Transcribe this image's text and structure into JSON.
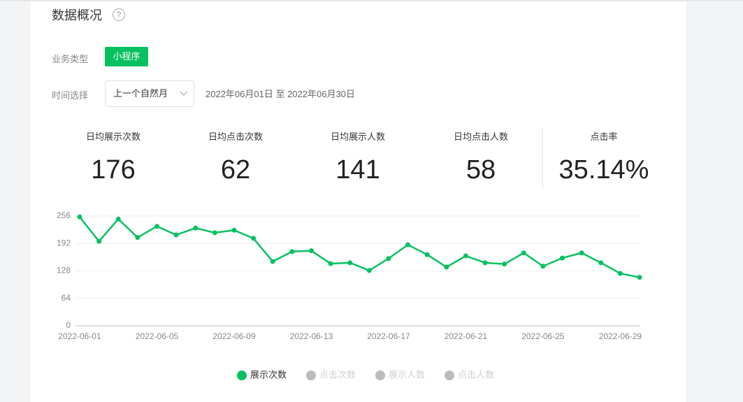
{
  "header": {
    "title": "数据概况",
    "help_icon": "?"
  },
  "filters": {
    "business_type": {
      "label": "业务类型",
      "tag": "小程序"
    },
    "time_select": {
      "label": "时间选择",
      "value": "上一个自然月",
      "range": "2022年06月01日 至 2022年06月30日"
    }
  },
  "stats": [
    {
      "label": "日均展示次数",
      "value": 176
    },
    {
      "label": "日均点击次数",
      "value": 62
    },
    {
      "label": "日均展示人数",
      "value": 141
    },
    {
      "label": "日均点击人数",
      "value": 58
    },
    {
      "label": "点击率",
      "value": "35.14%"
    }
  ],
  "chart_data": {
    "type": "line",
    "categories": [
      "2022-06-01",
      null,
      null,
      null,
      "2022-06-05",
      null,
      null,
      null,
      "2022-06-09",
      null,
      null,
      null,
      "2022-06-13",
      null,
      null,
      null,
      "2022-06-17",
      null,
      null,
      null,
      "2022-06-21",
      null,
      null,
      null,
      "2022-06-25",
      null,
      null,
      null,
      "2022-06-29",
      null
    ],
    "series": [
      {
        "name": "展示次数",
        "color": "#07c160",
        "values": [
          254,
          197,
          249,
          206,
          232,
          212,
          228,
          217,
          223,
          204,
          150,
          173,
          175,
          145,
          147,
          129,
          157,
          189,
          166,
          137,
          163,
          147,
          144,
          170,
          139,
          158,
          170,
          147,
          122,
          113
        ]
      },
      {
        "name": "点击次数",
        "color": "#bbbbbb",
        "hidden": true
      },
      {
        "name": "展示人数",
        "color": "#bbbbbb",
        "hidden": true
      },
      {
        "name": "点击人数",
        "color": "#bbbbbb",
        "hidden": true
      }
    ],
    "ylim": [
      0,
      256
    ],
    "yticks": [
      0,
      64,
      128,
      192,
      256
    ],
    "grid": true
  }
}
